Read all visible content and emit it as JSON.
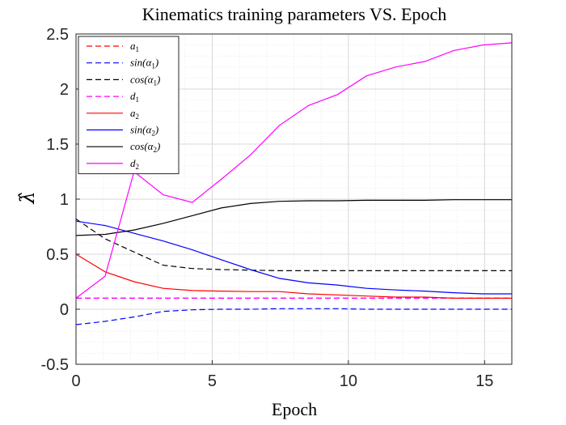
{
  "chart_data": {
    "type": "line",
    "title": "Kinematics training parameters VS. Epoch",
    "xlabel": "Epoch",
    "ylabel": "λ̂",
    "xlim": [
      0,
      16
    ],
    "ylim": [
      -0.5,
      2.5
    ],
    "xticks": [
      0,
      5,
      10,
      15
    ],
    "yticks": [
      -0.5,
      0,
      0.5,
      1,
      1.5,
      2,
      2.5
    ],
    "ytick_labels": [
      "-0.5",
      "0",
      "0.5",
      "1",
      "1.5",
      "2",
      "2.5"
    ],
    "grid": true,
    "legend_position": "top-left",
    "x": [
      0,
      1.07,
      2.13,
      3.2,
      4.27,
      5.33,
      6.4,
      7.47,
      8.53,
      9.6,
      10.67,
      11.73,
      12.8,
      13.87,
      14.93,
      16
    ],
    "series": [
      {
        "name": "a1",
        "legend_base": "a",
        "legend_sub": "1",
        "color": "#ff0000",
        "dash": "dashed",
        "values": [
          0.1,
          0.1,
          0.1,
          0.1,
          0.1,
          0.1,
          0.1,
          0.1,
          0.1,
          0.1,
          0.1,
          0.1,
          0.1,
          0.1,
          0.1,
          0.1
        ]
      },
      {
        "name": "sin(α1)",
        "legend_base": "sin(α",
        "legend_sub": "1",
        "legend_tail": ")",
        "color": "#0000ff",
        "dash": "dashed",
        "values": [
          -0.14,
          -0.11,
          -0.07,
          -0.02,
          -0.005,
          0.0,
          0.0,
          0.005,
          0.005,
          0.005,
          0.0,
          0.0,
          0.0,
          0.0,
          0.0,
          0.0
        ]
      },
      {
        "name": "cos(α1)",
        "legend_base": "cos(α",
        "legend_sub": "1",
        "legend_tail": ")",
        "color": "#000000",
        "dash": "dashed",
        "values": [
          0.82,
          0.64,
          0.52,
          0.4,
          0.37,
          0.36,
          0.355,
          0.35,
          0.35,
          0.35,
          0.35,
          0.35,
          0.35,
          0.35,
          0.35,
          0.35
        ]
      },
      {
        "name": "d1",
        "legend_base": "d",
        "legend_sub": "1",
        "color": "#ff00ff",
        "dash": "dashed",
        "values": [
          0.1,
          0.1,
          0.1,
          0.1,
          0.1,
          0.1,
          0.1,
          0.1,
          0.1,
          0.1,
          0.1,
          0.1,
          0.1,
          0.1,
          0.1,
          0.1
        ]
      },
      {
        "name": "a2",
        "legend_base": "a",
        "legend_sub": "2",
        "color": "#ff0000",
        "dash": "solid",
        "values": [
          0.5,
          0.34,
          0.25,
          0.19,
          0.17,
          0.165,
          0.16,
          0.16,
          0.14,
          0.13,
          0.12,
          0.11,
          0.11,
          0.1,
          0.1,
          0.1
        ]
      },
      {
        "name": "sin(α2)",
        "legend_base": "sin(α",
        "legend_sub": "2",
        "legend_tail": ")",
        "color": "#0000ff",
        "dash": "solid",
        "values": [
          0.8,
          0.76,
          0.69,
          0.62,
          0.54,
          0.45,
          0.36,
          0.28,
          0.24,
          0.22,
          0.19,
          0.175,
          0.165,
          0.15,
          0.14,
          0.14
        ]
      },
      {
        "name": "cos(α2)",
        "legend_base": "cos(α",
        "legend_sub": "2",
        "legend_tail": ")",
        "color": "#000000",
        "dash": "solid",
        "values": [
          0.67,
          0.68,
          0.72,
          0.78,
          0.85,
          0.92,
          0.96,
          0.98,
          0.985,
          0.985,
          0.99,
          0.99,
          0.99,
          0.995,
          0.995,
          0.995
        ]
      },
      {
        "name": "d2",
        "legend_base": "d",
        "legend_sub": "2",
        "color": "#ff00ff",
        "dash": "solid",
        "values": [
          0.1,
          0.3,
          1.25,
          1.04,
          0.97,
          1.18,
          1.4,
          1.67,
          1.85,
          1.95,
          2.12,
          2.2,
          2.25,
          2.35,
          2.4,
          2.42
        ]
      }
    ]
  }
}
